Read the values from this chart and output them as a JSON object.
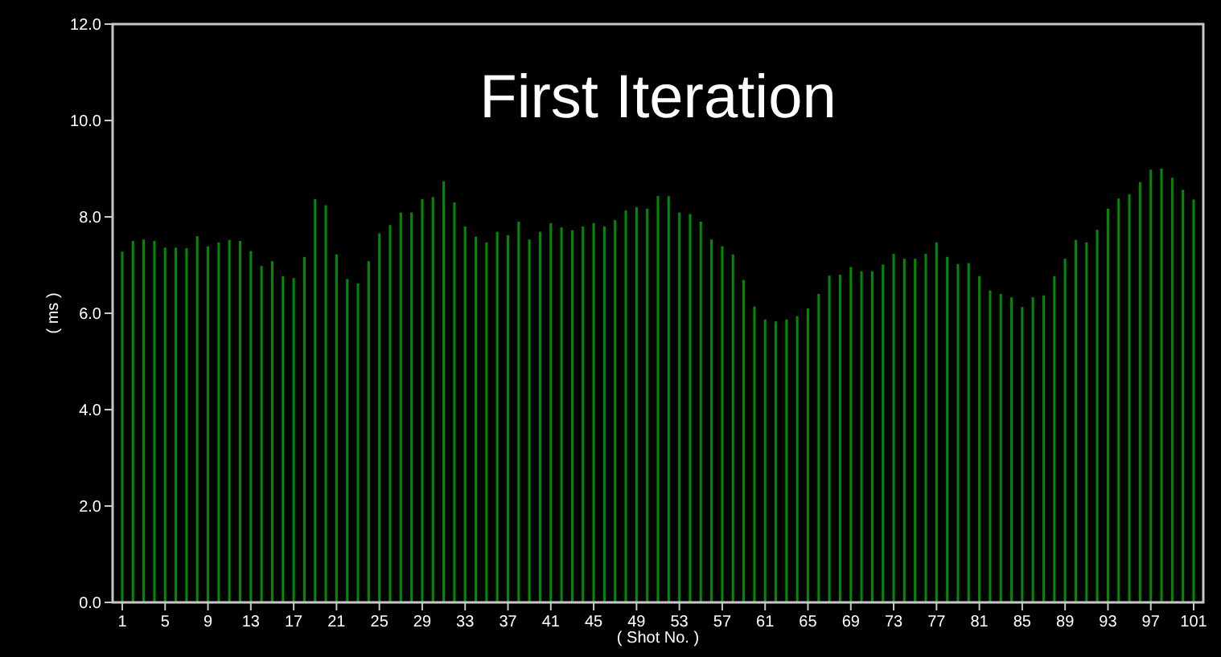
{
  "chart_data": {
    "type": "bar",
    "title": "First Iteration",
    "xlabel": "( Shot No. )",
    "ylabel": "( ms )",
    "x": [
      1,
      2,
      3,
      4,
      5,
      6,
      7,
      8,
      9,
      10,
      11,
      12,
      13,
      14,
      15,
      16,
      17,
      18,
      19,
      20,
      21,
      22,
      23,
      24,
      25,
      26,
      27,
      28,
      29,
      30,
      31,
      32,
      33,
      34,
      35,
      36,
      37,
      38,
      39,
      40,
      41,
      42,
      43,
      44,
      45,
      46,
      47,
      48,
      49,
      50,
      51,
      52,
      53,
      54,
      55,
      56,
      57,
      58,
      59,
      60,
      61,
      62,
      63,
      64,
      65,
      66,
      67,
      68,
      69,
      70,
      71,
      72,
      73,
      74,
      75,
      76,
      77,
      78,
      79,
      80,
      81,
      82,
      83,
      84,
      85,
      86,
      87,
      88,
      89,
      90,
      91,
      92,
      93,
      94,
      95,
      96,
      97,
      98,
      99,
      100,
      101
    ],
    "values": [
      7.28,
      7.5,
      7.53,
      7.5,
      7.36,
      7.36,
      7.35,
      7.6,
      7.39,
      7.47,
      7.52,
      7.5,
      7.29,
      6.98,
      7.08,
      6.77,
      6.73,
      7.17,
      8.37,
      8.24,
      7.22,
      6.71,
      6.62,
      7.08,
      7.66,
      7.83,
      8.09,
      8.09,
      8.37,
      8.41,
      8.74,
      8.3,
      7.8,
      7.59,
      7.47,
      7.69,
      7.62,
      7.9,
      7.53,
      7.69,
      7.87,
      7.78,
      7.72,
      7.8,
      7.87,
      7.8,
      7.93,
      8.13,
      8.2,
      8.17,
      8.43,
      8.43,
      8.09,
      8.06,
      7.9,
      7.53,
      7.39,
      7.22,
      6.69,
      6.14,
      5.87,
      5.83,
      5.87,
      5.94,
      6.1,
      6.4,
      6.78,
      6.8,
      6.96,
      6.87,
      6.87,
      7.01,
      7.23,
      7.13,
      7.13,
      7.23,
      7.47,
      7.17,
      7.02,
      7.04,
      6.77,
      6.47,
      6.4,
      6.33,
      6.13,
      6.33,
      6.37,
      6.77,
      7.13,
      7.52,
      7.47,
      7.73,
      8.17,
      8.38,
      8.47,
      8.72,
      8.98,
      9.0,
      8.81,
      8.56,
      8.36
    ],
    "color": "#008c00",
    "xlim": [
      0.1,
      101.9
    ],
    "xticks": [
      1,
      5,
      9,
      13,
      17,
      21,
      25,
      29,
      33,
      37,
      41,
      45,
      49,
      53,
      57,
      61,
      65,
      69,
      73,
      77,
      81,
      85,
      89,
      93,
      97,
      101
    ],
    "ylim": [
      0,
      12
    ],
    "yticks": [
      {
        "value": 0,
        "label": "0.0"
      },
      {
        "value": 2,
        "label": "2.0"
      },
      {
        "value": 4,
        "label": "4.0"
      },
      {
        "value": 6,
        "label": "6.0"
      },
      {
        "value": 8,
        "label": "8.0"
      },
      {
        "value": 10,
        "label": "10.0"
      },
      {
        "value": 12,
        "label": "12.0"
      }
    ]
  }
}
